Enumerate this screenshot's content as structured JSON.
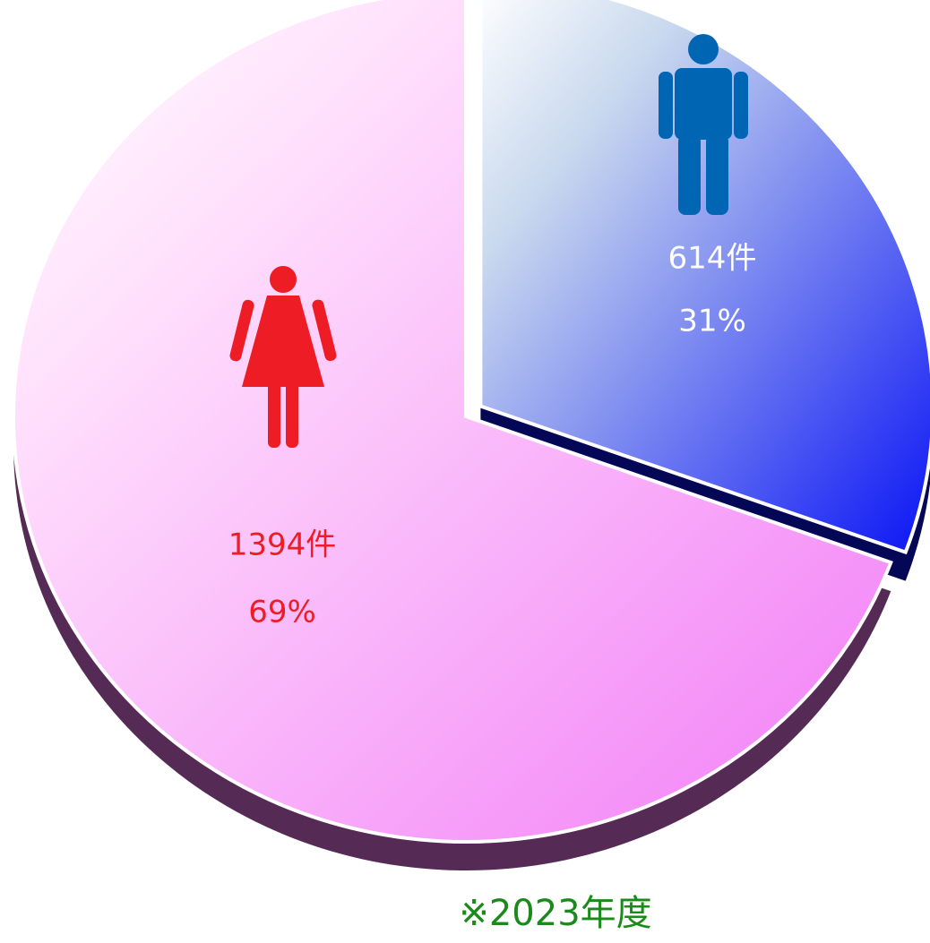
{
  "chart_data": {
    "type": "pie",
    "values": [
      614,
      1394
    ],
    "value_labels": [
      "614件",
      "1394件"
    ],
    "percents": [
      31,
      69
    ],
    "percent_labels": [
      "31%",
      "69%"
    ],
    "colors": [
      "#0a14f5",
      "#f27cf7"
    ],
    "label_colors": [
      "#ffffff",
      "#ee1c24"
    ],
    "footnote": "※2023年度"
  }
}
